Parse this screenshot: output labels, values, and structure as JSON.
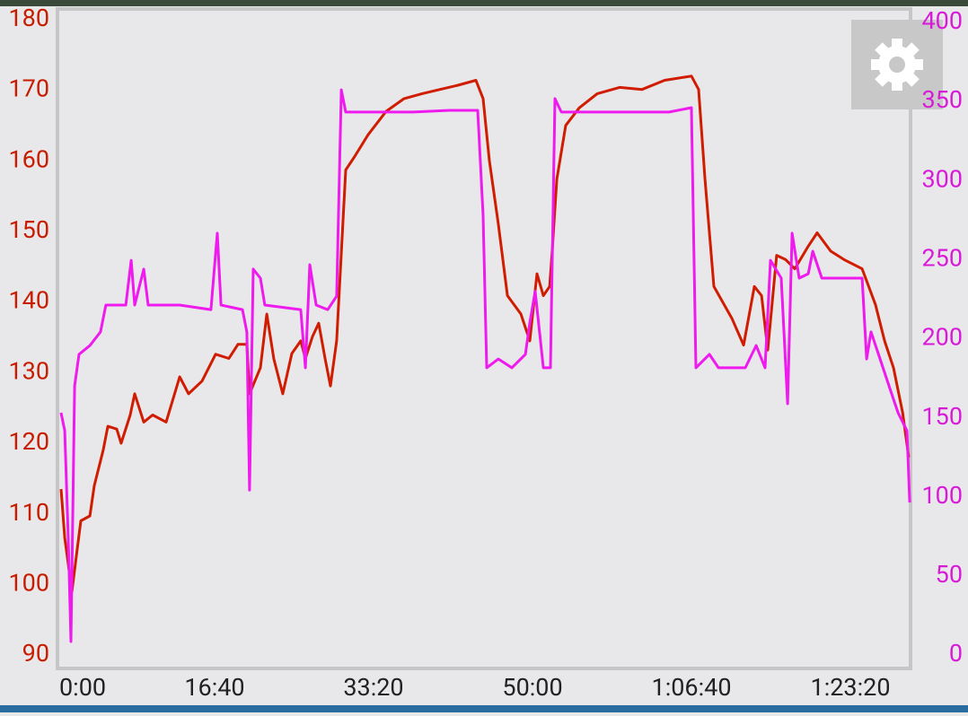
{
  "chart_data": {
    "type": "line",
    "xlim": [
      0,
      5384
    ],
    "xticks": [
      {
        "value": 0,
        "label": "0:00"
      },
      {
        "value": 1000,
        "label": "16:40"
      },
      {
        "value": 2000,
        "label": "33:20"
      },
      {
        "value": 3000,
        "label": "50:00"
      },
      {
        "value": 4000,
        "label": "1:06:40"
      },
      {
        "value": 5000,
        "label": "1:23:20"
      }
    ],
    "ylim": [
      88.1,
      181.5
    ],
    "yticks": [
      90,
      100,
      110,
      120,
      130,
      140,
      150,
      160,
      170,
      180
    ],
    "y2lim": [
      -8.5,
      408.5
    ],
    "y2ticks": [
      0,
      50,
      100,
      150,
      200,
      250,
      300,
      350,
      400
    ],
    "ycolor": "#c81c00",
    "y2color": "#d81ad8",
    "grid": false,
    "series": [
      {
        "color": "#d01c00",
        "x": [
          34,
          57,
          102,
          130,
          158,
          215,
          243,
          299,
          328,
          384,
          412,
          469,
          497,
          554,
          610,
          695,
          780,
          836,
          921,
          1006,
          1090,
          1147,
          1203,
          1220,
          1288,
          1328,
          1373,
          1429,
          1486,
          1542,
          1571,
          1616,
          1655,
          1695,
          1729,
          1768,
          1825,
          1881,
          1966,
          2079,
          2192,
          2305,
          2418,
          2531,
          2644,
          2689,
          2729,
          2785,
          2842,
          2927,
          2983,
          3028,
          3068,
          3108,
          3124,
          3153,
          3209,
          3294,
          3407,
          3548,
          3689,
          3831,
          4000,
          4045,
          4085,
          4141,
          4254,
          4328,
          4396,
          4441,
          4480,
          4536,
          4593,
          4650,
          4735,
          4791,
          4876,
          4961,
          5074,
          5158,
          5215,
          5271,
          5328,
          5367
        ],
        "values": [
          113.5,
          106.6,
          99,
          104,
          109,
          109.7,
          114,
          119,
          122.4,
          122,
          120,
          124,
          127,
          123,
          124,
          123,
          129.4,
          127,
          128.8,
          132.6,
          132,
          134,
          134,
          127,
          130.7,
          138.3,
          131.9,
          127,
          132.7,
          134.5,
          132,
          135.1,
          137,
          132,
          128.1,
          134.5,
          158.7,
          160.6,
          163.7,
          167,
          168.8,
          169.5,
          170.1,
          170.7,
          171.4,
          168.8,
          160,
          151,
          140.9,
          138.3,
          134.5,
          144,
          140.9,
          142.2,
          147.3,
          157.4,
          165,
          167.5,
          169.5,
          170.4,
          170.1,
          171.4,
          172,
          170.1,
          157.4,
          142.2,
          137.7,
          133.9,
          142.2,
          140.9,
          133.2,
          146.6,
          146,
          144.7,
          147.9,
          149.8,
          147.2,
          146,
          144.7,
          139.6,
          134.5,
          130.7,
          124.4,
          118
        ]
      },
      {
        "color": "#ee1aee",
        "axis": "y2",
        "x": [
          34,
          57,
          79,
          96,
          119,
          147,
          215,
          282,
          316,
          441,
          475,
          497,
          554,
          582,
          780,
          977,
          1017,
          1040,
          1175,
          1203,
          1220,
          1243,
          1288,
          1316,
          1542,
          1571,
          1599,
          1639,
          1712,
          1768,
          1797,
          1825,
          2023,
          2249,
          2475,
          2655,
          2689,
          2712,
          2785,
          2870,
          2955,
          2983,
          3017,
          3068,
          3113,
          3141,
          3181,
          3379,
          3605,
          3859,
          4000,
          4028,
          4113,
          4170,
          4339,
          4407,
          4463,
          4497,
          4565,
          4605,
          4633,
          4678,
          4735,
          4763,
          4820,
          5074,
          5102,
          5130,
          5187,
          5243,
          5300,
          5356,
          5373
        ],
        "values": [
          153.2,
          141.8,
          73.8,
          8.5,
          170.2,
          190.1,
          195.7,
          204.3,
          221.3,
          221.3,
          249.6,
          221.3,
          244,
          221.3,
          221.3,
          218.4,
          266.7,
          221.3,
          218.4,
          204.3,
          104.3,
          244,
          238.3,
          221.3,
          218.4,
          181.6,
          246.8,
          221.3,
          218.4,
          226.9,
          357.4,
          343.3,
          343.3,
          343.3,
          344.4,
          344.4,
          278,
          181.6,
          187.2,
          181.6,
          190.1,
          210,
          230,
          181.6,
          181.6,
          351.8,
          343.3,
          343.3,
          343.3,
          343.3,
          346.1,
          181.6,
          190.1,
          181.6,
          181.6,
          195.7,
          181.6,
          249.6,
          238.3,
          158.9,
          266.7,
          238.3,
          241.1,
          255.3,
          238.3,
          238.3,
          187.2,
          204.3,
          187.2,
          170.2,
          153.2,
          141.8,
          96.5
        ]
      }
    ]
  }
}
